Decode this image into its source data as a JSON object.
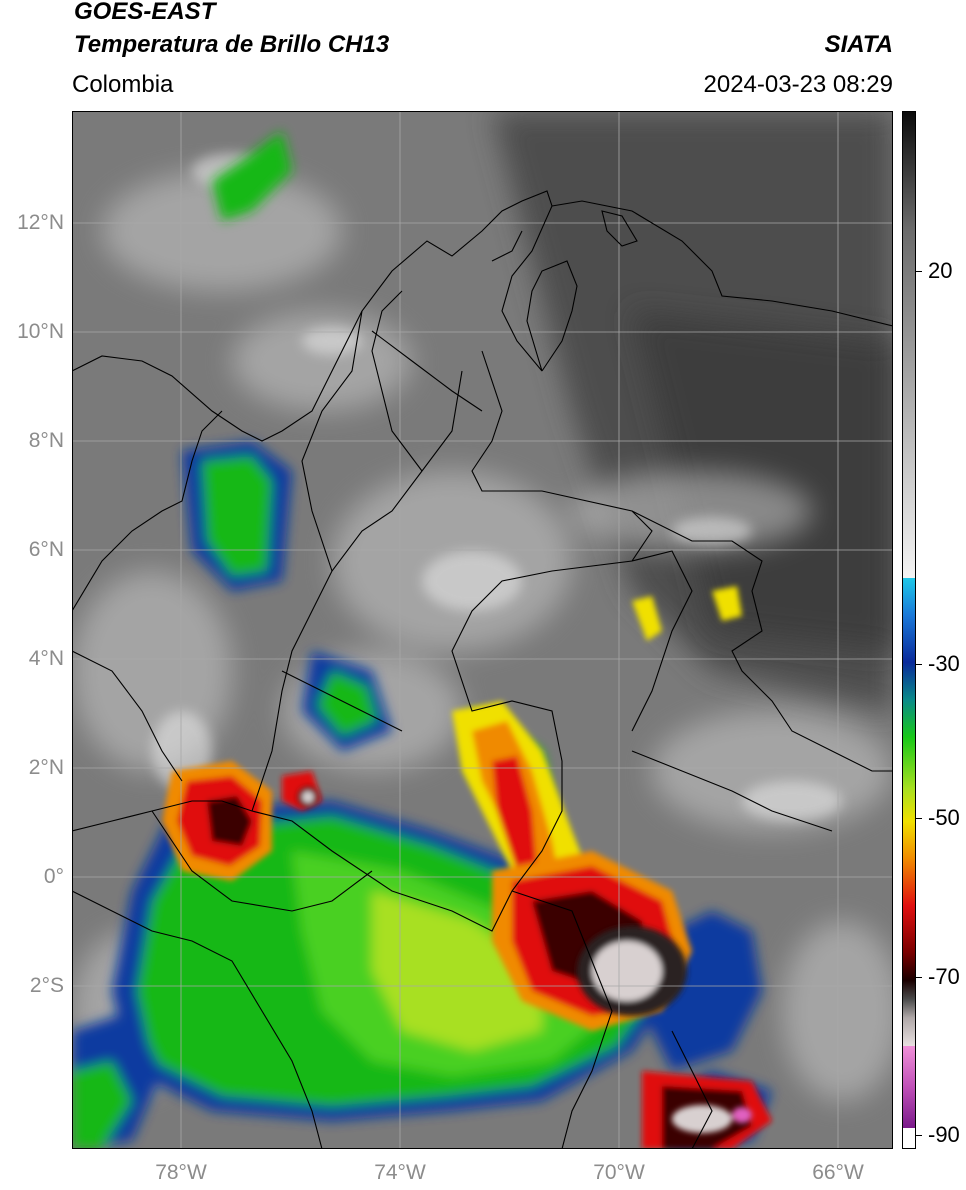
{
  "header": {
    "satellite": "GOES-EAST",
    "product": "Temperatura de Brillo CH13",
    "region": "Colombia",
    "agency": "SIATA",
    "timestamp": "2024-03-23 08:29"
  },
  "axes": {
    "lat_labels": [
      "12°N",
      "10°N",
      "8°N",
      "6°N",
      "4°N",
      "2°N",
      "0°",
      "2°S"
    ],
    "lon_labels": [
      "78°W",
      "74°W",
      "70°W",
      "66°W"
    ]
  },
  "colorbar": {
    "tick_labels": [
      "20",
      "-30",
      "-50",
      "-70",
      "-90"
    ],
    "colors": {
      "cold_dark": "#1a1a1a",
      "gray_light": "#e0e0e0",
      "cyan": "#1ec8e8",
      "blue": "#0a2a9a",
      "green": "#18c818",
      "yellow": "#f0e000",
      "orange": "#f08a00",
      "red": "#e01010",
      "dark_red": "#3a0000",
      "magenta": "#e060c0",
      "purple": "#7a1a8a"
    }
  },
  "map": {
    "background": "#7a7a7a",
    "grid_color": "#a8a8a8",
    "border_color": "#000000"
  }
}
